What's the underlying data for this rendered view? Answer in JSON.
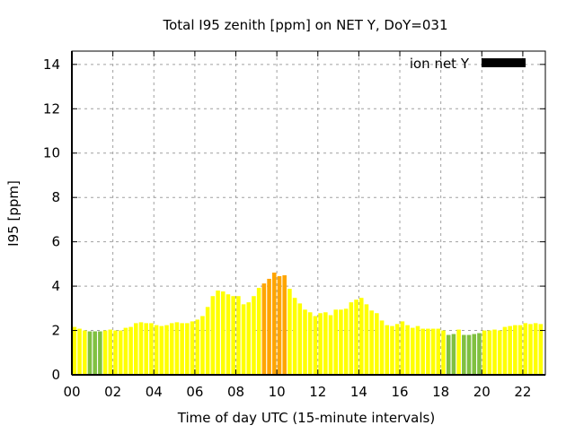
{
  "chart_data": {
    "type": "bar",
    "title": "Total I95 zenith [ppm] on NET Y, DoY=031",
    "xlabel": "Time of day UTC (15-minute intervals)",
    "ylabel": "I95 [ppm]",
    "xlim": [
      0,
      23.1
    ],
    "ylim": [
      0,
      14.6
    ],
    "grid": true,
    "legend": {
      "label": "ion net Y",
      "color": "#000000",
      "placement": "top-right"
    },
    "xticks": [
      0,
      2,
      4,
      6,
      8,
      10,
      12,
      14,
      16,
      18,
      20,
      22
    ],
    "xtick_labels": [
      "00",
      "02",
      "04",
      "06",
      "08",
      "10",
      "12",
      "14",
      "16",
      "18",
      "20",
      "22"
    ],
    "yticks": [
      0,
      2,
      4,
      6,
      8,
      10,
      12,
      14
    ],
    "ytick_labels": [
      "0",
      "2",
      "4",
      "6",
      "8",
      "10",
      "12",
      "14"
    ],
    "interval_hours": 0.25,
    "palette": {
      "yellow": "#ffff00",
      "green": "#80c040",
      "orange": "#ffa500"
    },
    "values": [
      2.16,
      2.08,
      2.0,
      1.96,
      1.96,
      1.96,
      2.0,
      2.04,
      2.0,
      2.0,
      2.12,
      2.16,
      2.33,
      2.37,
      2.33,
      2.33,
      2.24,
      2.2,
      2.24,
      2.33,
      2.37,
      2.33,
      2.33,
      2.41,
      2.49,
      2.65,
      3.06,
      3.55,
      3.8,
      3.76,
      3.63,
      3.55,
      3.55,
      3.18,
      3.27,
      3.55,
      3.92,
      4.12,
      4.33,
      4.61,
      4.45,
      4.49,
      3.88,
      3.47,
      3.22,
      2.94,
      2.82,
      2.65,
      2.78,
      2.82,
      2.69,
      2.94,
      2.94,
      2.98,
      3.27,
      3.39,
      3.47,
      3.18,
      2.9,
      2.78,
      2.45,
      2.24,
      2.2,
      2.29,
      2.41,
      2.24,
      2.12,
      2.2,
      2.08,
      2.08,
      2.08,
      2.08,
      2.0,
      1.8,
      1.84,
      2.04,
      1.8,
      1.8,
      1.84,
      1.88,
      2.0,
      2.0,
      2.04,
      2.0,
      2.16,
      2.2,
      2.24,
      2.24,
      2.33,
      2.29,
      2.33,
      2.29
    ],
    "colors": [
      "yellow",
      "yellow",
      "yellow",
      "green",
      "green",
      "green",
      "yellow",
      "yellow",
      "yellow",
      "yellow",
      "yellow",
      "yellow",
      "yellow",
      "yellow",
      "yellow",
      "yellow",
      "yellow",
      "yellow",
      "yellow",
      "yellow",
      "yellow",
      "yellow",
      "yellow",
      "yellow",
      "yellow",
      "yellow",
      "yellow",
      "yellow",
      "yellow",
      "yellow",
      "yellow",
      "yellow",
      "yellow",
      "yellow",
      "yellow",
      "yellow",
      "yellow",
      "orange",
      "orange",
      "orange",
      "orange",
      "orange",
      "yellow",
      "yellow",
      "yellow",
      "yellow",
      "yellow",
      "yellow",
      "yellow",
      "yellow",
      "yellow",
      "yellow",
      "yellow",
      "yellow",
      "yellow",
      "yellow",
      "yellow",
      "yellow",
      "yellow",
      "yellow",
      "yellow",
      "yellow",
      "yellow",
      "yellow",
      "yellow",
      "yellow",
      "yellow",
      "yellow",
      "yellow",
      "yellow",
      "yellow",
      "yellow",
      "yellow",
      "green",
      "green",
      "yellow",
      "green",
      "green",
      "green",
      "green",
      "yellow",
      "yellow",
      "yellow",
      "yellow",
      "yellow",
      "yellow",
      "yellow",
      "yellow",
      "yellow",
      "yellow",
      "yellow",
      "yellow"
    ]
  }
}
